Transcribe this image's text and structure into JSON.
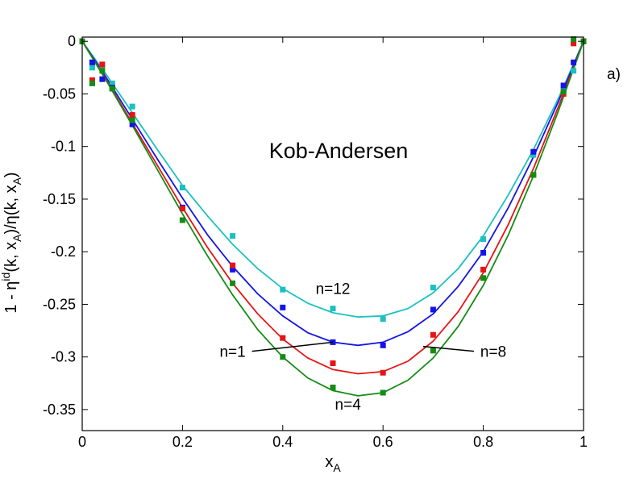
{
  "chart_data": {
    "type": "scatter",
    "title": "Kob-Andersen",
    "panel_label": "a)",
    "xlabel": {
      "base": "x",
      "sub": "A"
    },
    "ylabel": {
      "p1": "1 - η",
      "sup": "id",
      "p2": "(k, x",
      "sub1": "A",
      "p3": ")/η(k, x",
      "sub2": "A",
      "p4": ")"
    },
    "xlim": [
      0,
      1
    ],
    "ylim": [
      -0.37,
      0.004
    ],
    "x_ticks": [
      0,
      0.2,
      0.4,
      0.6,
      0.8,
      1
    ],
    "x_tick_labels": [
      "0",
      "0.2",
      "0.4",
      "0.6",
      "0.8",
      "1"
    ],
    "y_ticks": [
      0,
      -0.05,
      -0.1,
      -0.15,
      -0.2,
      -0.25,
      -0.3,
      -0.35
    ],
    "y_tick_labels": [
      "0",
      "-0.05",
      "-0.1",
      "-0.15",
      "-0.2",
      "-0.25",
      "-0.3",
      "-0.35"
    ],
    "grid": false,
    "series": [
      {
        "name": "n=12",
        "color": "#1cc0c0",
        "points": [
          [
            0,
            0
          ],
          [
            0.02,
            -0.025
          ],
          [
            0.04,
            -0.025
          ],
          [
            0.06,
            -0.04
          ],
          [
            0.1,
            -0.062
          ],
          [
            0.2,
            -0.139
          ],
          [
            0.3,
            -0.185
          ],
          [
            0.4,
            -0.236
          ],
          [
            0.5,
            -0.254
          ],
          [
            0.6,
            -0.264
          ],
          [
            0.7,
            -0.234
          ],
          [
            0.8,
            -0.188
          ],
          [
            0.9,
            -0.108
          ],
          [
            0.96,
            -0.047
          ],
          [
            0.98,
            -0.028
          ],
          [
            1,
            0
          ]
        ],
        "curve": [
          [
            0,
            0
          ],
          [
            0.05,
            -0.033
          ],
          [
            0.1,
            -0.068
          ],
          [
            0.15,
            -0.103
          ],
          [
            0.2,
            -0.137
          ],
          [
            0.25,
            -0.166
          ],
          [
            0.3,
            -0.193
          ],
          [
            0.35,
            -0.216
          ],
          [
            0.4,
            -0.235
          ],
          [
            0.45,
            -0.249
          ],
          [
            0.5,
            -0.258
          ],
          [
            0.55,
            -0.262
          ],
          [
            0.6,
            -0.261
          ],
          [
            0.65,
            -0.254
          ],
          [
            0.7,
            -0.239
          ],
          [
            0.75,
            -0.216
          ],
          [
            0.8,
            -0.185
          ],
          [
            0.85,
            -0.146
          ],
          [
            0.9,
            -0.103
          ],
          [
            0.95,
            -0.054
          ],
          [
            1,
            0
          ]
        ]
      },
      {
        "name": "n=1",
        "color": "#1414e6",
        "points": [
          [
            0,
            0
          ],
          [
            0.02,
            -0.02
          ],
          [
            0.04,
            -0.036
          ],
          [
            0.06,
            -0.044
          ],
          [
            0.1,
            -0.079
          ],
          [
            0.2,
            -0.158
          ],
          [
            0.3,
            -0.217
          ],
          [
            0.4,
            -0.253
          ],
          [
            0.5,
            -0.286
          ],
          [
            0.6,
            -0.289
          ],
          [
            0.7,
            -0.255
          ],
          [
            0.8,
            -0.201
          ],
          [
            0.9,
            -0.105
          ],
          [
            0.96,
            -0.042
          ],
          [
            0.98,
            -0.02
          ],
          [
            1,
            0
          ]
        ],
        "curve": [
          [
            0,
            0
          ],
          [
            0.05,
            -0.036
          ],
          [
            0.1,
            -0.074
          ],
          [
            0.15,
            -0.112
          ],
          [
            0.2,
            -0.149
          ],
          [
            0.25,
            -0.184
          ],
          [
            0.3,
            -0.214
          ],
          [
            0.35,
            -0.24
          ],
          [
            0.4,
            -0.261
          ],
          [
            0.45,
            -0.277
          ],
          [
            0.5,
            -0.286
          ],
          [
            0.55,
            -0.289
          ],
          [
            0.6,
            -0.286
          ],
          [
            0.65,
            -0.276
          ],
          [
            0.7,
            -0.259
          ],
          [
            0.75,
            -0.233
          ],
          [
            0.8,
            -0.2
          ],
          [
            0.85,
            -0.158
          ],
          [
            0.9,
            -0.11
          ],
          [
            0.95,
            -0.057
          ],
          [
            1,
            0
          ]
        ]
      },
      {
        "name": "n=8",
        "color": "#e61414",
        "points": [
          [
            0,
            0
          ],
          [
            0.02,
            -0.037
          ],
          [
            0.04,
            -0.022
          ],
          [
            0.06,
            -0.045
          ],
          [
            0.1,
            -0.07
          ],
          [
            0.2,
            -0.159
          ],
          [
            0.3,
            -0.213
          ],
          [
            0.4,
            -0.282
          ],
          [
            0.5,
            -0.306
          ],
          [
            0.6,
            -0.315
          ],
          [
            0.7,
            -0.279
          ],
          [
            0.8,
            -0.217
          ],
          [
            0.9,
            -0.127
          ],
          [
            0.96,
            -0.05
          ],
          [
            0.98,
            -0.002
          ],
          [
            1,
            0
          ]
        ],
        "curve": [
          [
            0,
            0
          ],
          [
            0.05,
            -0.038
          ],
          [
            0.1,
            -0.078
          ],
          [
            0.15,
            -0.118
          ],
          [
            0.2,
            -0.158
          ],
          [
            0.25,
            -0.196
          ],
          [
            0.3,
            -0.23
          ],
          [
            0.35,
            -0.259
          ],
          [
            0.4,
            -0.283
          ],
          [
            0.45,
            -0.301
          ],
          [
            0.5,
            -0.312
          ],
          [
            0.55,
            -0.316
          ],
          [
            0.6,
            -0.314
          ],
          [
            0.65,
            -0.304
          ],
          [
            0.7,
            -0.285
          ],
          [
            0.75,
            -0.257
          ],
          [
            0.8,
            -0.22
          ],
          [
            0.85,
            -0.174
          ],
          [
            0.9,
            -0.121
          ],
          [
            0.95,
            -0.062
          ],
          [
            1,
            0
          ]
        ]
      },
      {
        "name": "n=4",
        "color": "#148c14",
        "points": [
          [
            0,
            0
          ],
          [
            0.02,
            -0.04
          ],
          [
            0.04,
            -0.028
          ],
          [
            0.06,
            -0.045
          ],
          [
            0.1,
            -0.075
          ],
          [
            0.2,
            -0.17
          ],
          [
            0.3,
            -0.23
          ],
          [
            0.4,
            -0.3
          ],
          [
            0.5,
            -0.329
          ],
          [
            0.6,
            -0.334
          ],
          [
            0.7,
            -0.294
          ],
          [
            0.8,
            -0.225
          ],
          [
            0.9,
            -0.127
          ],
          [
            0.96,
            -0.048
          ],
          [
            0.98,
            0.002
          ],
          [
            1,
            0
          ]
        ],
        "curve": [
          [
            0,
            0
          ],
          [
            0.05,
            -0.039
          ],
          [
            0.1,
            -0.08
          ],
          [
            0.15,
            -0.122
          ],
          [
            0.2,
            -0.164
          ],
          [
            0.25,
            -0.204
          ],
          [
            0.3,
            -0.241
          ],
          [
            0.35,
            -0.274
          ],
          [
            0.4,
            -0.3
          ],
          [
            0.45,
            -0.32
          ],
          [
            0.5,
            -0.332
          ],
          [
            0.55,
            -0.337
          ],
          [
            0.6,
            -0.334
          ],
          [
            0.65,
            -0.322
          ],
          [
            0.7,
            -0.301
          ],
          [
            0.75,
            -0.271
          ],
          [
            0.8,
            -0.232
          ],
          [
            0.85,
            -0.184
          ],
          [
            0.9,
            -0.128
          ],
          [
            0.95,
            -0.066
          ],
          [
            1,
            0
          ]
        ]
      }
    ],
    "annotations": [
      {
        "text": "n=12",
        "x": 0.5,
        "y": -0.24
      },
      {
        "text": "n=1",
        "x": 0.3,
        "y": -0.3,
        "arrow_to": [
          0.5,
          -0.286
        ]
      },
      {
        "text": "n=8",
        "x": 0.82,
        "y": -0.3,
        "arrow_to": [
          0.68,
          -0.29
        ]
      },
      {
        "text": "n=4",
        "x": 0.53,
        "y": -0.35
      }
    ]
  }
}
